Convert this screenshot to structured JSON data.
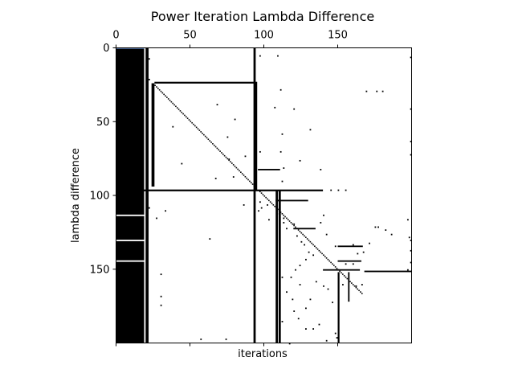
{
  "chart_data": {
    "type": "heatmap",
    "title": "Power Iteration Lambda Difference",
    "xlabel": "iterations",
    "ylabel": "lambda difference",
    "n": 200,
    "xlim": [
      0,
      200
    ],
    "ylim": [
      200,
      0
    ],
    "x_ticks": [
      0,
      50,
      100,
      150
    ],
    "x_tick_labels_top": [
      "0",
      "50",
      "100",
      "150"
    ],
    "y_ticks": [
      0,
      50,
      100,
      150
    ],
    "y_tick_labels": [
      "0",
      "50",
      "100",
      "150"
    ],
    "x_ticks_bottom": [
      0,
      50,
      100,
      150
    ],
    "colors": {
      "filled": "#000000",
      "empty": "#ffffff",
      "accent": "#4c6a9a"
    },
    "filled_rects": [
      [
        0,
        0,
        19,
        200
      ],
      [
        20,
        0,
        2,
        200
      ],
      [
        24,
        24,
        2,
        70
      ],
      [
        26,
        23,
        68,
        1.2
      ],
      [
        93,
        0,
        1.5,
        200
      ],
      [
        94,
        23,
        1.5,
        74
      ],
      [
        108,
        97,
        1.5,
        103
      ],
      [
        110,
        97,
        1.5,
        103
      ],
      [
        96,
        82,
        15,
        1
      ],
      [
        0,
        96,
        140,
        1.2
      ],
      [
        108,
        103,
        22,
        1
      ],
      [
        120,
        122,
        15,
        1
      ],
      [
        150,
        134,
        17,
        1
      ],
      [
        150,
        144,
        16,
        1
      ],
      [
        140,
        150,
        25,
        1
      ],
      [
        168,
        151,
        32,
        1
      ],
      [
        150,
        152,
        1.2,
        48
      ],
      [
        157,
        152,
        1,
        20
      ]
    ],
    "white_gaps": [
      [
        0,
        113,
        19,
        1
      ],
      [
        0,
        130,
        19,
        1
      ],
      [
        0,
        144,
        19,
        1
      ]
    ],
    "diagonal_segments": [
      [
        25,
        24,
        94,
        94
      ],
      [
        97,
        97,
        166,
        166
      ]
    ],
    "scatter_points": [
      [
        22,
        7
      ],
      [
        22,
        21
      ],
      [
        109,
        5
      ],
      [
        199,
        6
      ],
      [
        97,
        5
      ],
      [
        111,
        28
      ],
      [
        180,
        29
      ],
      [
        169,
        29
      ],
      [
        176,
        29
      ],
      [
        199,
        41
      ],
      [
        38,
        53
      ],
      [
        44,
        78
      ],
      [
        68,
        38
      ],
      [
        75,
        60
      ],
      [
        80,
        48
      ],
      [
        67,
        88
      ],
      [
        79,
        87
      ],
      [
        87,
        73
      ],
      [
        76,
        75
      ],
      [
        97,
        70
      ],
      [
        111,
        70
      ],
      [
        107,
        40
      ],
      [
        112,
        58
      ],
      [
        120,
        41
      ],
      [
        113,
        81
      ],
      [
        112,
        90
      ],
      [
        124,
        76
      ],
      [
        131,
        55
      ],
      [
        138,
        82
      ],
      [
        199,
        63
      ],
      [
        199,
        72
      ],
      [
        63,
        129
      ],
      [
        27,
        115
      ],
      [
        22,
        108
      ],
      [
        33,
        110
      ],
      [
        30,
        153
      ],
      [
        30,
        168
      ],
      [
        30,
        174
      ],
      [
        86,
        106
      ],
      [
        97,
        104
      ],
      [
        96,
        110
      ],
      [
        98,
        108
      ],
      [
        102,
        106
      ],
      [
        103,
        116
      ],
      [
        110,
        112
      ],
      [
        113,
        115
      ],
      [
        113,
        118
      ],
      [
        115,
        122
      ],
      [
        120,
        119
      ],
      [
        122,
        127
      ],
      [
        125,
        131
      ],
      [
        127,
        133
      ],
      [
        130,
        138
      ],
      [
        133,
        140
      ],
      [
        128,
        143
      ],
      [
        124,
        147
      ],
      [
        121,
        150
      ],
      [
        118,
        155
      ],
      [
        124,
        160
      ],
      [
        131,
        170
      ],
      [
        135,
        158
      ],
      [
        140,
        161
      ],
      [
        143,
        163
      ],
      [
        146,
        172
      ],
      [
        153,
        160
      ],
      [
        162,
        161
      ],
      [
        166,
        160
      ],
      [
        112,
        155
      ],
      [
        115,
        165
      ],
      [
        120,
        178
      ],
      [
        123,
        183
      ],
      [
        128,
        190
      ],
      [
        133,
        190
      ],
      [
        137,
        187
      ],
      [
        148,
        193
      ],
      [
        149,
        196
      ],
      [
        142,
        198
      ],
      [
        128,
        176
      ],
      [
        112,
        185
      ],
      [
        119,
        170
      ],
      [
        148,
        134
      ],
      [
        160,
        133
      ],
      [
        163,
        139
      ],
      [
        167,
        138
      ],
      [
        155,
        146
      ],
      [
        160,
        146
      ],
      [
        171,
        132
      ],
      [
        175,
        121
      ],
      [
        177,
        121
      ],
      [
        182,
        123
      ],
      [
        186,
        126
      ],
      [
        197,
        116
      ],
      [
        198,
        128
      ],
      [
        199,
        130
      ],
      [
        199,
        137
      ],
      [
        199,
        145
      ],
      [
        197,
        150
      ],
      [
        117,
        200
      ],
      [
        57,
        197
      ],
      [
        74,
        197
      ],
      [
        142,
        126
      ],
      [
        138,
        118
      ],
      [
        140,
        113
      ],
      [
        145,
        96
      ],
      [
        150,
        96
      ],
      [
        155,
        96
      ]
    ]
  }
}
